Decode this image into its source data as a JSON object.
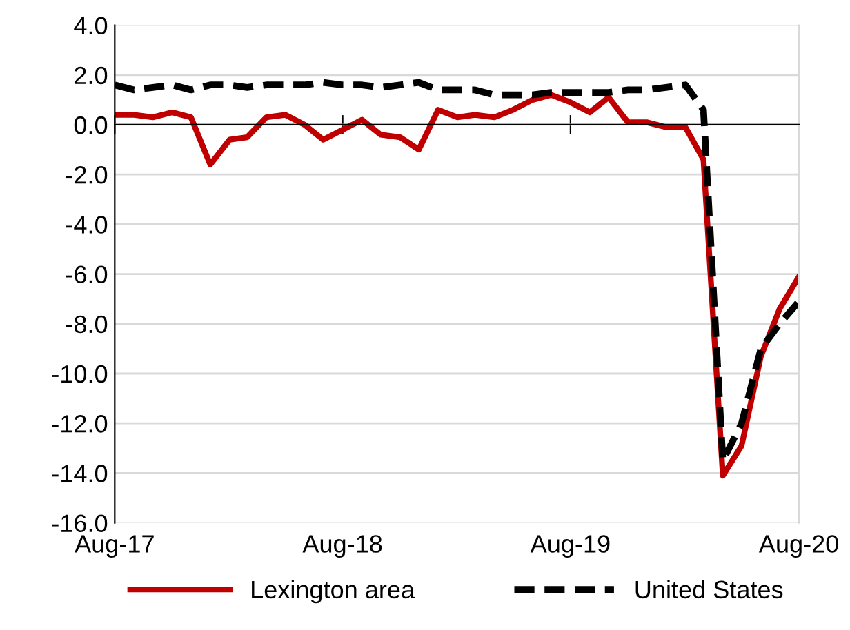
{
  "chart_data": {
    "type": "line",
    "x": [
      "2017-08",
      "2017-09",
      "2017-10",
      "2017-11",
      "2017-12",
      "2018-01",
      "2018-02",
      "2018-03",
      "2018-04",
      "2018-05",
      "2018-06",
      "2018-07",
      "2018-08",
      "2018-09",
      "2018-10",
      "2018-11",
      "2018-12",
      "2019-01",
      "2019-02",
      "2019-03",
      "2019-04",
      "2019-05",
      "2019-06",
      "2019-07",
      "2019-08",
      "2019-09",
      "2019-10",
      "2019-11",
      "2019-12",
      "2020-01",
      "2020-02",
      "2020-03",
      "2020-04",
      "2020-05",
      "2020-06",
      "2020-07",
      "2020-08"
    ],
    "series": [
      {
        "name": "Lexington area",
        "color": "#c00000",
        "line_style": "solid",
        "values": [
          0.4,
          0.4,
          0.3,
          0.5,
          0.3,
          -1.6,
          -0.6,
          -0.5,
          0.3,
          0.4,
          0.0,
          -0.6,
          -0.2,
          0.2,
          -0.4,
          -0.5,
          -1.0,
          0.6,
          0.3,
          0.4,
          0.3,
          0.6,
          1.0,
          1.2,
          0.9,
          0.5,
          1.1,
          0.1,
          0.1,
          -0.1,
          -0.1,
          -1.4,
          -14.1,
          -12.9,
          -9.3,
          -7.4,
          -6.1
        ]
      },
      {
        "name": "United States",
        "color": "#000000",
        "line_style": "dashed",
        "values": [
          1.6,
          1.4,
          1.5,
          1.6,
          1.4,
          1.6,
          1.6,
          1.5,
          1.6,
          1.6,
          1.6,
          1.7,
          1.6,
          1.6,
          1.5,
          1.6,
          1.7,
          1.4,
          1.4,
          1.4,
          1.2,
          1.2,
          1.2,
          1.3,
          1.3,
          1.3,
          1.3,
          1.4,
          1.4,
          1.5,
          1.6,
          0.6,
          -13.5,
          -12.0,
          -9.0,
          -8.0,
          -7.1
        ]
      }
    ],
    "ylim": [
      -16.0,
      4.0
    ],
    "yticks": [
      {
        "value": -16,
        "label": "-16.0"
      },
      {
        "value": -14,
        "label": "-14.0"
      },
      {
        "value": -12,
        "label": "-12.0"
      },
      {
        "value": -10,
        "label": "-10.0"
      },
      {
        "value": -8,
        "label": "-8.0"
      },
      {
        "value": -6,
        "label": "-6.0"
      },
      {
        "value": -4,
        "label": "-4.0"
      },
      {
        "value": -2,
        "label": "-2.0"
      },
      {
        "value": 0,
        "label": "0.0"
      },
      {
        "value": 2,
        "label": "2.0"
      },
      {
        "value": 4,
        "label": "4.0"
      }
    ],
    "xlim": [
      "2017-08",
      "2020-08"
    ],
    "xticks": [
      {
        "value": "2017-08",
        "label": "Aug-17"
      },
      {
        "value": "2018-08",
        "label": "Aug-18"
      },
      {
        "value": "2019-08",
        "label": "Aug-19"
      },
      {
        "value": "2020-08",
        "label": "Aug-20"
      }
    ],
    "grid": "y",
    "legend": "bottom",
    "marker": "none"
  }
}
